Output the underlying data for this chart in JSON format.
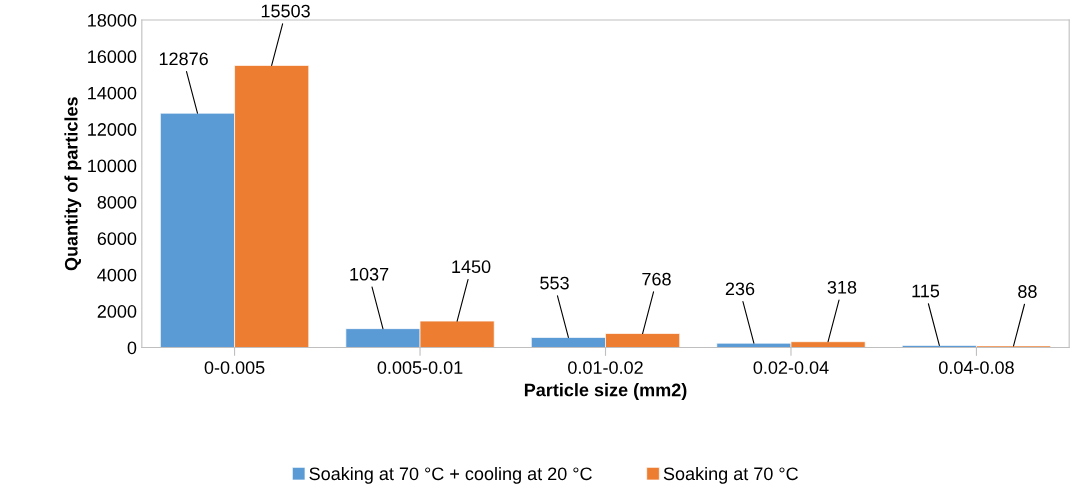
{
  "chart_data": {
    "type": "bar",
    "xlabel": "Particle size (mm2)",
    "ylabel": "Quantity of particles",
    "categories": [
      "0-0.005",
      "0.005-0.01",
      "0.01-0.02",
      "0.02-0.04",
      "0.04-0.08"
    ],
    "series": [
      {
        "name": "Soaking at 70 °C + cooling at 20 °C",
        "color": "#5b9bd5",
        "values": [
          12876,
          1037,
          553,
          236,
          115
        ]
      },
      {
        "name": "Soaking at 70 °C",
        "color": "#ed7d31",
        "values": [
          15503,
          1450,
          768,
          318,
          88
        ]
      }
    ],
    "ylim": [
      0,
      18000
    ],
    "yticks": [
      0,
      2000,
      4000,
      6000,
      8000,
      10000,
      12000,
      14000,
      16000,
      18000
    ],
    "data_labels": true,
    "legend": "bottom",
    "grid": false
  }
}
